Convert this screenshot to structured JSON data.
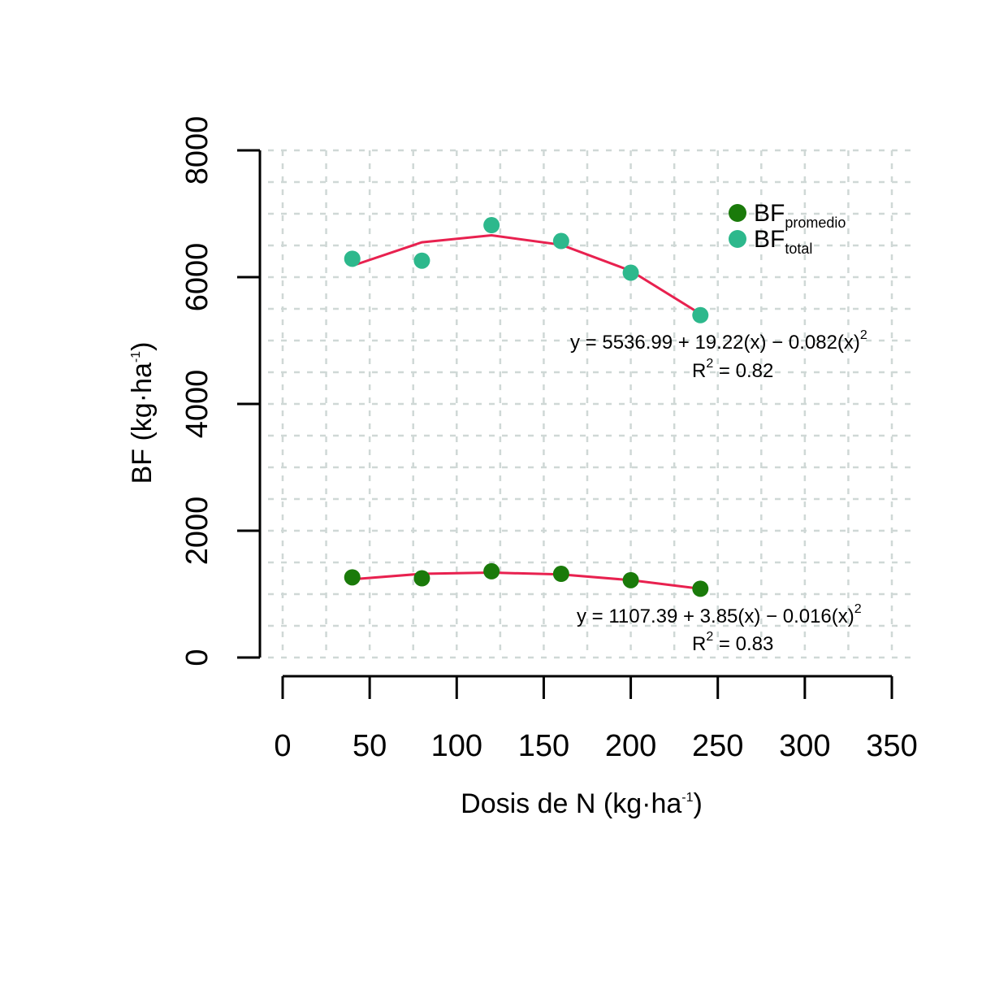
{
  "chart_data": {
    "type": "scatter",
    "xlabel": "Dosis de N (kg·ha",
    "xlabel_sup": "-1",
    "xlabel_end": ")",
    "ylabel": "BF (kg·ha",
    "ylabel_sup": "-1",
    "ylabel_end": ")",
    "xlim": [
      0,
      350
    ],
    "ylim": [
      0,
      8000
    ],
    "x_ticks": [
      0,
      50,
      100,
      150,
      200,
      250,
      300,
      350
    ],
    "y_ticks": [
      0,
      2000,
      4000,
      6000,
      8000
    ],
    "grid": true,
    "legend_position": "top-right",
    "series": [
      {
        "name": "BF",
        "name_sub": "promedio",
        "color": "#1a7a0a",
        "x": [
          40,
          80,
          120,
          160,
          200,
          240
        ],
        "y": [
          1265,
          1250,
          1360,
          1320,
          1220,
          1085
        ],
        "fit": {
          "color": "#e8214f",
          "x": [
            40,
            80,
            120,
            160,
            200,
            240
          ],
          "y": [
            1235,
            1320,
            1340,
            1310,
            1220,
            1085
          ],
          "equation": {
            "prefix": "y = 1107.39 + 3.85(x) − 0.016(x)",
            "prefix_sup": "2",
            "r2_label": "R",
            "r2_sup": "2",
            "r2_value": " = 0.83"
          }
        }
      },
      {
        "name": "BF",
        "name_sub": "total",
        "color": "#2db88c",
        "x": [
          40,
          80,
          120,
          160,
          200,
          240
        ],
        "y": [
          6290,
          6260,
          6820,
          6570,
          6070,
          5400
        ],
        "fit": {
          "color": "#e8214f",
          "x": [
            40,
            80,
            120,
            160,
            200,
            240
          ],
          "y": [
            6180,
            6550,
            6660,
            6510,
            6100,
            5420
          ],
          "equation": {
            "prefix": "y = 5536.99 + 19.22(x) − 0.082(x)",
            "prefix_sup": "2",
            "r2_label": "R",
            "r2_sup": "2",
            "r2_value": " = 0.82"
          }
        }
      }
    ]
  }
}
